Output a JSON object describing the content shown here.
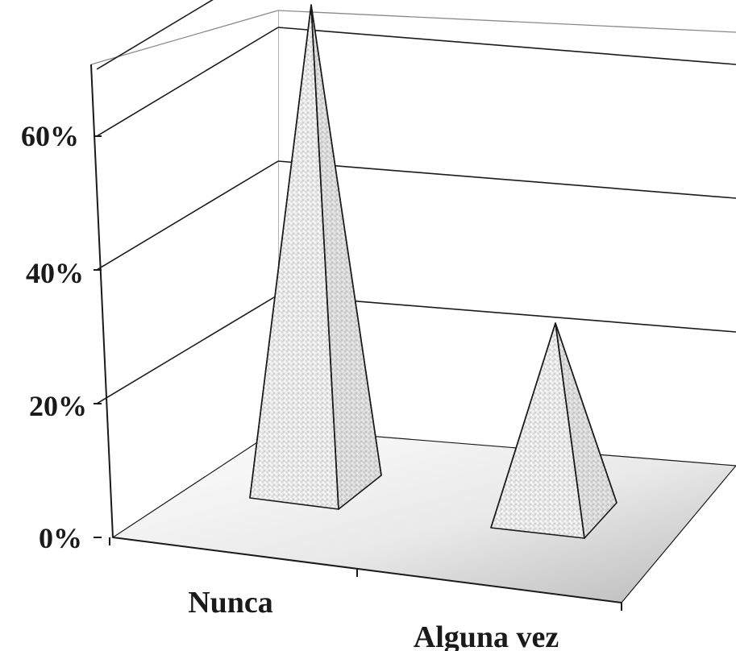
{
  "chart_data": {
    "type": "bar",
    "shape": "3d-pyramid",
    "categories": [
      "Nunca",
      "Alguna vez"
    ],
    "values": [
      73,
      30
    ],
    "ylim": [
      0,
      70
    ],
    "y_ticks": [
      "0%",
      "20%",
      "40%",
      "60%"
    ],
    "title": "",
    "xlabel": "",
    "ylabel": "",
    "grid": true,
    "legend": false
  }
}
